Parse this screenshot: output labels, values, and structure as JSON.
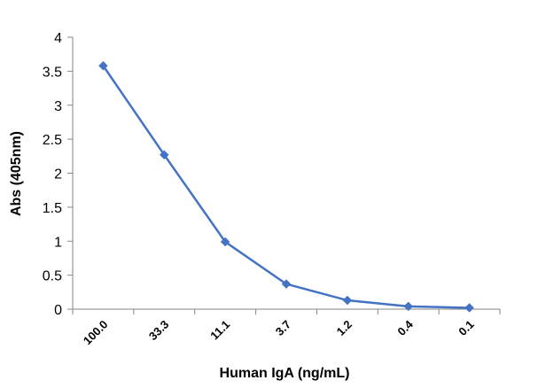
{
  "chart_data": {
    "type": "line",
    "categories": [
      "100.0",
      "33.3",
      "11.1",
      "3.7",
      "1.2",
      "0.4",
      "0.1"
    ],
    "series": [
      {
        "values": [
          3.58,
          2.27,
          0.99,
          0.37,
          0.13,
          0.04,
          0.02
        ],
        "color": "#4472C4",
        "marker": "diamond"
      }
    ],
    "xlabel": "Human IgA (ng/mL)",
    "ylabel": "Abs (405nm)",
    "ylim": [
      0,
      4
    ],
    "yticks": [
      "0",
      "0.5",
      "1",
      "1.5",
      "2",
      "2.5",
      "3",
      "3.5",
      "4"
    ],
    "grid": false,
    "legend": "none"
  }
}
